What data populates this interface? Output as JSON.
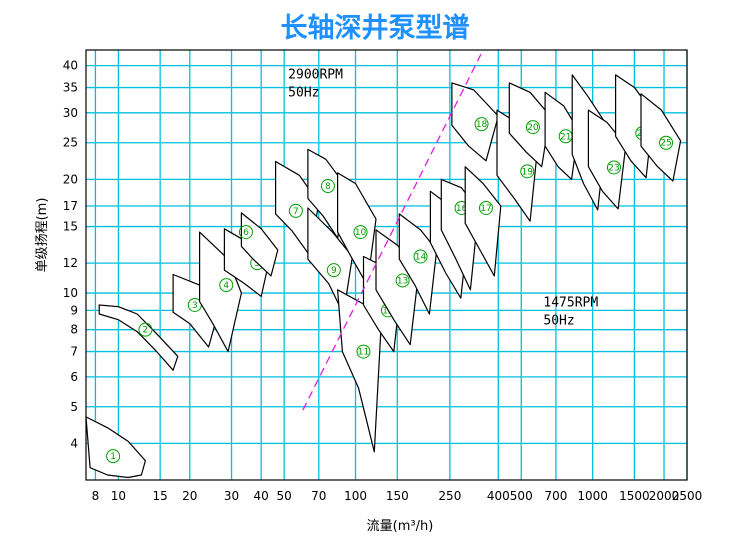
{
  "chart_data": {
    "type": "scatter",
    "title": "长轴深井泵型谱",
    "xlabel": "流量(m³/h)",
    "ylabel": "单级扬程(m)",
    "x_scale": "log",
    "y_scale": "log",
    "xlim": [
      7.3,
      2500
    ],
    "ylim": [
      3.2,
      44
    ],
    "grid": true,
    "grid_color": "#00c0e0",
    "x_ticks": [
      8,
      10,
      15,
      20,
      30,
      40,
      50,
      70,
      100,
      150,
      250,
      400,
      500,
      700,
      1000,
      1500,
      2000,
      2500
    ],
    "x_tick_labels": [
      "8",
      "10",
      "15",
      "20",
      "30",
      "40",
      "50",
      "70",
      "100",
      "150",
      "250",
      "400",
      "500",
      "700",
      "1000",
      "1500",
      "2000",
      "2500"
    ],
    "y_ticks": [
      4,
      5,
      6,
      7,
      8,
      9,
      10,
      12,
      15,
      17,
      20,
      25,
      30,
      35,
      40
    ],
    "y_tick_labels": [
      "4",
      "5",
      "6",
      "7",
      "8",
      "9",
      "10",
      "12",
      "15",
      "17",
      "20",
      "25",
      "30",
      "35",
      "40"
    ],
    "annotations": [
      {
        "text_lines": [
          "2900RPM",
          "50Hz"
        ],
        "x": 52,
        "y": 37
      },
      {
        "text_lines": [
          "1475RPM",
          "50Hz"
        ],
        "x": 620,
        "y": 9.2
      }
    ],
    "divider_line": {
      "color": "#e020e0",
      "style": "dashed",
      "points": [
        [
          60,
          4.9
        ],
        [
          345,
          44
        ]
      ]
    },
    "regions": [
      {
        "label": "1",
        "center": [
          9.5,
          3.7
        ],
        "polygon": [
          [
            7.3,
            4.7
          ],
          [
            9,
            4.4
          ],
          [
            11,
            4.05
          ],
          [
            13,
            3.6
          ],
          [
            12.5,
            3.3
          ],
          [
            11,
            3.25
          ],
          [
            9,
            3.3
          ],
          [
            7.6,
            3.45
          ]
        ]
      },
      {
        "label": "2",
        "center": [
          13,
          8.0
        ],
        "polygon": [
          [
            8.3,
            9.3
          ],
          [
            10,
            9.2
          ],
          [
            12,
            8.8
          ],
          [
            14.5,
            7.8
          ],
          [
            17.8,
            6.8
          ],
          [
            17,
            6.25
          ],
          [
            14.5,
            7.0
          ],
          [
            12,
            7.9
          ],
          [
            10,
            8.5
          ],
          [
            8.3,
            8.8
          ]
        ]
      },
      {
        "label": "3",
        "center": [
          21,
          9.3
        ],
        "polygon": [
          [
            17,
            11.2
          ],
          [
            22,
            10.5
          ],
          [
            26,
            8.6
          ],
          [
            24,
            7.2
          ],
          [
            20,
            8.3
          ],
          [
            17,
            8.9
          ]
        ]
      },
      {
        "label": "4",
        "center": [
          28.5,
          10.5
        ],
        "polygon": [
          [
            22,
            14.5
          ],
          [
            29,
            12.3
          ],
          [
            33,
            10
          ],
          [
            29,
            7.0
          ],
          [
            25,
            8.3
          ],
          [
            22,
            9.5
          ]
        ]
      },
      {
        "label": "5",
        "center": [
          38.5,
          12.0
        ],
        "polygon": [
          [
            28,
            14.8
          ],
          [
            36,
            13.5
          ],
          [
            43,
            12
          ],
          [
            40,
            9.8
          ],
          [
            34,
            10.6
          ],
          [
            28,
            11.5
          ]
        ]
      },
      {
        "label": "6",
        "center": [
          34.5,
          14.5
        ],
        "polygon": [
          [
            33,
            16.3
          ],
          [
            40,
            14.8
          ],
          [
            47,
            13
          ],
          [
            44,
            11.1
          ],
          [
            37,
            12.3
          ],
          [
            33,
            13.3
          ]
        ]
      },
      {
        "label": "7",
        "center": [
          56,
          16.5
        ],
        "polygon": [
          [
            46,
            22.3
          ],
          [
            58,
            20.5
          ],
          [
            70,
            17.3
          ],
          [
            64,
            12.6
          ],
          [
            54,
            14.6
          ],
          [
            46,
            16.2
          ]
        ]
      },
      {
        "label": "8",
        "center": [
          76.5,
          19.2
        ],
        "polygon": [
          [
            63,
            24
          ],
          [
            75,
            22.6
          ],
          [
            92,
            19
          ],
          [
            84,
            14
          ],
          [
            73,
            16
          ],
          [
            63,
            17.8
          ]
        ]
      },
      {
        "label": "9",
        "center": [
          81,
          11.5
        ],
        "polygon": [
          [
            63,
            16.8
          ],
          [
            80,
            14.5
          ],
          [
            97,
            12.5
          ],
          [
            89,
            8.8
          ],
          [
            77,
            10.6
          ],
          [
            63,
            12.3
          ]
        ]
      },
      {
        "label": "10",
        "center": [
          105,
          14.5
        ],
        "polygon": [
          [
            84,
            20.8
          ],
          [
            100,
            19.5
          ],
          [
            122,
            15.7
          ],
          [
            112,
            10.5
          ],
          [
            97,
            12.3
          ],
          [
            84,
            14.5
          ]
        ]
      },
      {
        "label": "11",
        "center": [
          108,
          7.0
        ],
        "polygon": [
          [
            84,
            10.2
          ],
          [
            110,
            9.3
          ],
          [
            128,
            8
          ],
          [
            120,
            3.8
          ],
          [
            103,
            5.6
          ],
          [
            88,
            7.0
          ]
        ]
      },
      {
        "label": "12",
        "center": [
          137,
          9.0
        ],
        "polygon": [
          [
            108,
            12.5
          ],
          [
            130,
            11.8
          ],
          [
            155,
            10.2
          ],
          [
            145,
            7.0
          ],
          [
            125,
            8.0
          ],
          [
            108,
            9.3
          ]
        ]
      },
      {
        "label": "13",
        "center": [
          158,
          10.8
        ],
        "polygon": [
          [
            122,
            14.7
          ],
          [
            150,
            13.4
          ],
          [
            185,
            11.5
          ],
          [
            170,
            7.3
          ],
          [
            145,
            8.5
          ],
          [
            122,
            10.2
          ]
        ]
      },
      {
        "label": "14",
        "center": [
          188,
          12.5
        ],
        "polygon": [
          [
            153,
            16.2
          ],
          [
            188,
            14.7
          ],
          [
            220,
            13
          ],
          [
            205,
            8.8
          ],
          [
            178,
            10.5
          ],
          [
            153,
            12.3
          ]
        ]
      },
      {
        "label": "15",
        "center": [
          255,
          14.5
        ],
        "polygon": [
          [
            207,
            18.6
          ],
          [
            250,
            17
          ],
          [
            300,
            15
          ],
          [
            278,
            9.7
          ],
          [
            240,
            11.3
          ],
          [
            207,
            13.6
          ]
        ]
      },
      {
        "label": "16",
        "center": [
          280,
          16.8
        ],
        "polygon": [
          [
            230,
            20
          ],
          [
            280,
            19
          ],
          [
            330,
            16.5
          ],
          [
            305,
            10.2
          ],
          [
            265,
            12.3
          ],
          [
            230,
            14.7
          ]
        ]
      },
      {
        "label": "17",
        "center": [
          355,
          16.8
        ],
        "polygon": [
          [
            290,
            21.6
          ],
          [
            345,
            19.5
          ],
          [
            410,
            17
          ],
          [
            385,
            11.1
          ],
          [
            335,
            13
          ],
          [
            290,
            15.3
          ]
        ]
      },
      {
        "label": "18",
        "center": [
          340,
          28
        ],
        "polygon": [
          [
            255,
            36
          ],
          [
            315,
            34.5
          ],
          [
            400,
            29.4
          ],
          [
            355,
            22.4
          ],
          [
            300,
            24.5
          ],
          [
            255,
            27.8
          ]
        ]
      },
      {
        "label": "19",
        "center": [
          530,
          21
        ],
        "polygon": [
          [
            395,
            30.5
          ],
          [
            490,
            28
          ],
          [
            585,
            24
          ],
          [
            545,
            15.5
          ],
          [
            470,
            17.7
          ],
          [
            395,
            20.5
          ]
        ]
      },
      {
        "label": "20",
        "center": [
          560,
          27.5
        ],
        "polygon": [
          [
            445,
            36
          ],
          [
            545,
            34
          ],
          [
            660,
            29.5
          ],
          [
            610,
            21.6
          ],
          [
            525,
            23.6
          ],
          [
            445,
            26.5
          ]
        ]
      },
      {
        "label": "21",
        "center": [
          770,
          26
        ],
        "polygon": [
          [
            630,
            34
          ],
          [
            755,
            31.3
          ],
          [
            870,
            27
          ],
          [
            815,
            20
          ],
          [
            715,
            21.6
          ],
          [
            630,
            24.5
          ]
        ]
      },
      {
        "label": "22",
        "center": [
          1040,
          24
        ],
        "polygon": [
          [
            820,
            37.8
          ],
          [
            950,
            33.3
          ],
          [
            1150,
            27.8
          ],
          [
            1050,
            16.6
          ],
          [
            915,
            19.5
          ],
          [
            820,
            23.3
          ]
        ]
      },
      {
        "label": "23",
        "center": [
          1230,
          21.5
        ],
        "polygon": [
          [
            960,
            30.5
          ],
          [
            1150,
            28.3
          ],
          [
            1380,
            24.6
          ],
          [
            1280,
            16.7
          ],
          [
            1100,
            18.6
          ],
          [
            960,
            21.6
          ]
        ]
      },
      {
        "label": "24",
        "center": [
          1620,
          26.5
        ],
        "polygon": [
          [
            1250,
            37.8
          ],
          [
            1500,
            35
          ],
          [
            1800,
            30
          ],
          [
            1680,
            20.2
          ],
          [
            1450,
            22.4
          ],
          [
            1250,
            26
          ]
        ]
      },
      {
        "label": "25",
        "center": [
          2040,
          25
        ],
        "polygon": [
          [
            1600,
            33.7
          ],
          [
            1950,
            30.5
          ],
          [
            2350,
            25.3
          ],
          [
            2180,
            19.8
          ],
          [
            1880,
            21.6
          ],
          [
            1600,
            24.5
          ]
        ]
      }
    ]
  }
}
